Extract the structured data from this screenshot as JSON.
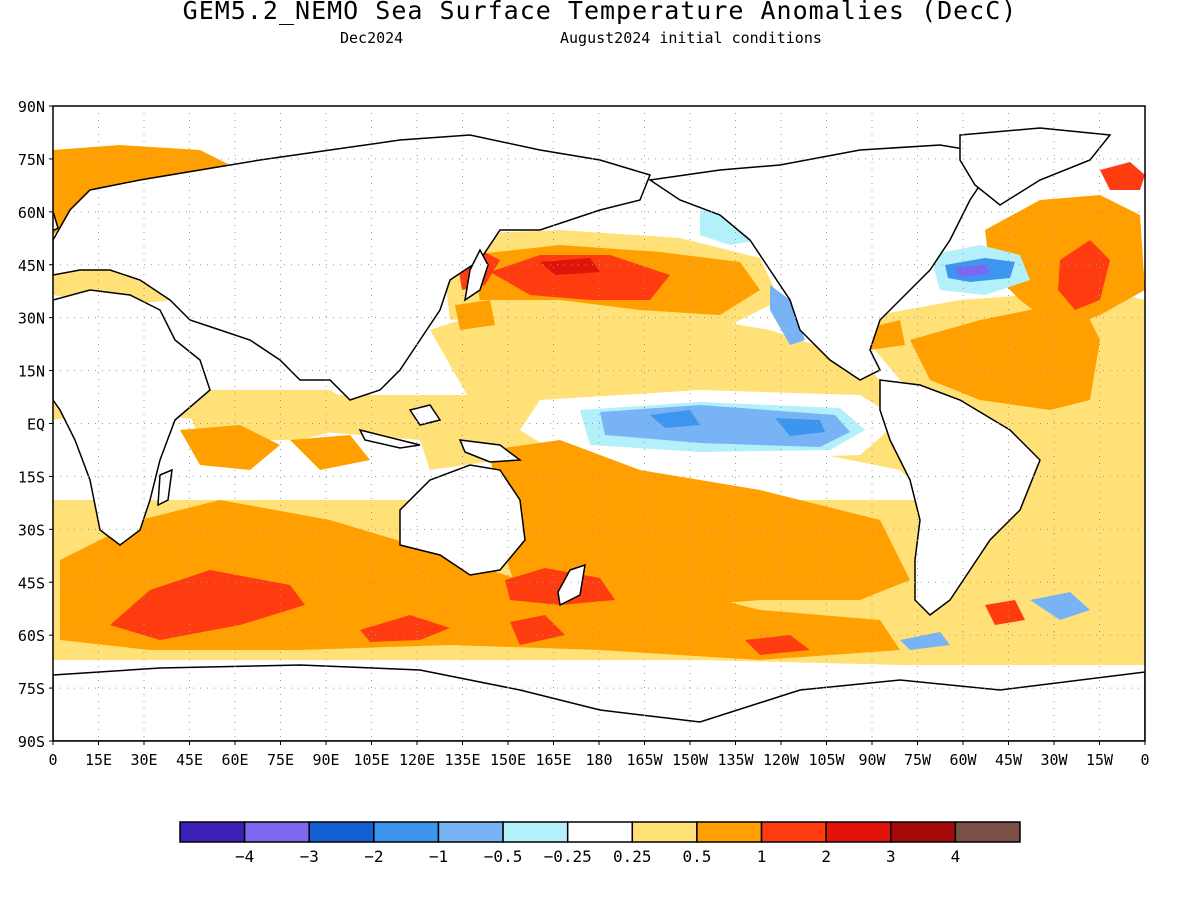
{
  "title": "GEM5.2_NEMO Sea Surface Temperature Anomalies (DecC)",
  "subtitle_left": "Dec2024",
  "subtitle_right": "August2024 initial conditions",
  "map": {
    "lat_labels": [
      "90N",
      "75N",
      "60N",
      "45N",
      "30N",
      "15N",
      "EQ",
      "15S",
      "30S",
      "45S",
      "60S",
      "75S",
      "90S"
    ],
    "lon_labels": [
      "0",
      "15E",
      "30E",
      "45E",
      "60E",
      "75E",
      "90E",
      "105E",
      "120E",
      "135E",
      "150E",
      "165E",
      "180",
      "165W",
      "150W",
      "135W",
      "120W",
      "105W",
      "90W",
      "75W",
      "60W",
      "45W",
      "30W",
      "15W",
      "0"
    ],
    "lon_range": [
      0,
      360
    ],
    "lat_range": [
      -90,
      90
    ],
    "grid": "dotted"
  },
  "colorbar": {
    "colors": [
      "#3c1fb4",
      "#7b68ee",
      "#1560d0",
      "#3c96f0",
      "#78b4f5",
      "#b4f0fa",
      "#ffffff",
      "#ffe178",
      "#ffa000",
      "#ff3c0f",
      "#e1140a",
      "#a50a0a",
      "#7a5044"
    ],
    "labels": [
      "-4",
      "-3",
      "-2",
      "-1",
      "-0.5",
      "-0.25",
      "0.25",
      "0.5",
      "1",
      "2",
      "3",
      "4"
    ]
  },
  "anomaly_colors": {
    "warm_025": "#ffe178",
    "warm_05": "#ffa000",
    "warm_1": "#ff3c0f",
    "warm_2": "#e1140a",
    "cool_025": "#b4f0fa",
    "cool_05": "#78b4f5",
    "cool_1": "#3c96f0",
    "cool_2": "#1560d0",
    "cool_4": "#7b68ee"
  }
}
